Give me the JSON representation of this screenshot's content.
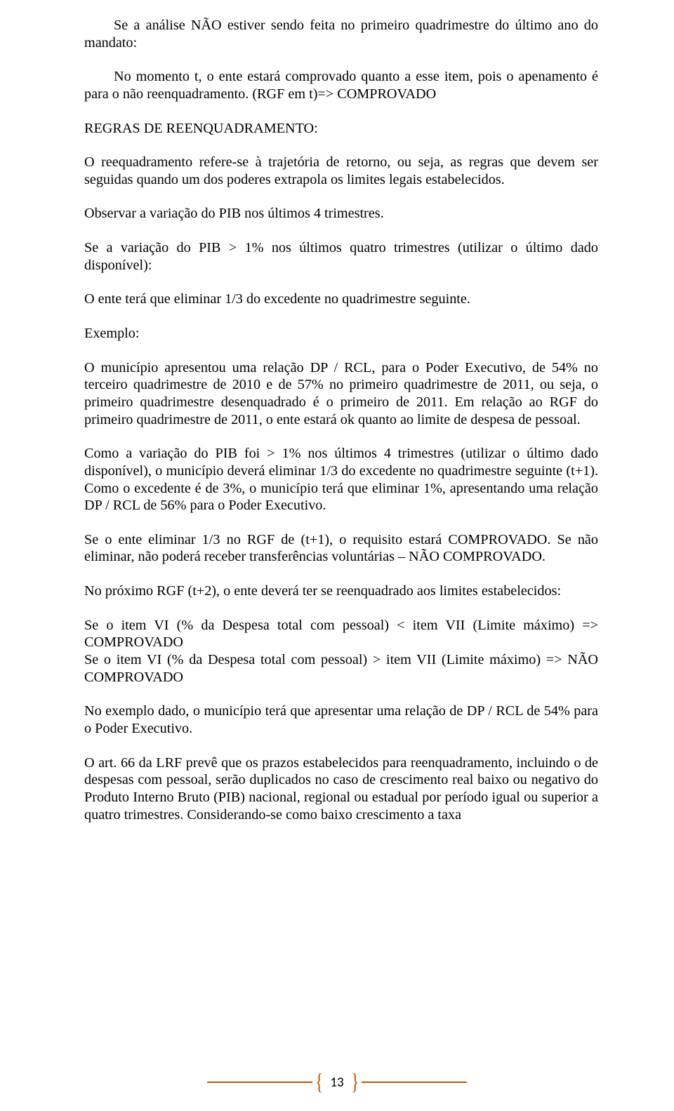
{
  "colors": {
    "text": "#000000",
    "accent": "#c05708",
    "background": "#ffffff"
  },
  "typography": {
    "body_family": "Times New Roman",
    "body_size_pt": 15,
    "footer_family": "Calibri",
    "footer_size_pt": 14
  },
  "paragraphs": {
    "p1": "Se a análise NÃO estiver sendo feita no primeiro quadrimestre do último ano do mandato:",
    "p2": "No momento t, o ente estará comprovado quanto a esse item, pois o apenamento é para o não reenquadramento. (RGF em t)=> COMPROVADO",
    "p3": "REGRAS DE REENQUADRAMENTO:",
    "p4": "O reequadramento refere-se à trajetória de retorno, ou seja, as regras que devem ser seguidas quando um dos poderes extrapola os limites legais estabelecidos.",
    "p5": "Observar a variação do PIB nos últimos 4 trimestres.",
    "p6": "Se a variação do PIB > 1% nos últimos quatro trimestres (utilizar o último dado disponível):",
    "p7": "O ente terá que eliminar 1/3 do excedente no quadrimestre seguinte.",
    "p8": "Exemplo:",
    "p9": "O município apresentou uma relação DP / RCL, para o Poder Executivo, de 54% no terceiro quadrimestre de 2010 e de 57% no primeiro quadrimestre de 2011, ou seja, o primeiro quadrimestre desenquadrado é o primeiro de 2011. Em relação ao RGF do primeiro quadrimestre de 2011, o ente estará ok quanto ao limite de despesa de pessoal.",
    "p10": "Como a variação do PIB foi > 1% nos últimos 4 trimestres (utilizar o último dado disponível), o município deverá eliminar 1/3 do excedente no quadrimestre seguinte (t+1). Como o excedente é de 3%, o município terá que eliminar 1%, apresentando uma relação DP / RCL de 56% para o Poder Executivo.",
    "p11": "Se o ente eliminar 1/3 no RGF de (t+1), o requisito estará COMPROVADO. Se não eliminar, não poderá receber transferências voluntárias – NÃO COMPROVADO.",
    "p12": "No próximo RGF (t+2), o ente deverá ter se reenquadrado aos limites estabelecidos:",
    "p13a": "Se o item VI (% da Despesa total com pessoal) < item VII (Limite máximo) => COMPROVADO",
    "p13b": "Se o item VI (% da Despesa total com pessoal) > item VII (Limite máximo) => NÃO COMPROVADO",
    "p14": "No exemplo dado, o município terá que apresentar uma relação de DP / RCL de 54% para o Poder Executivo.",
    "p15": "O art. 66 da LRF prevê que os prazos estabelecidos para reenquadramento, incluindo o de despesas com pessoal, serão duplicados no caso de crescimento real baixo ou negativo do Produto Interno Bruto (PIB) nacional, regional ou estadual por período igual ou superior a quatro trimestres. Considerando-se como baixo crescimento a taxa"
  },
  "page_number": "13"
}
